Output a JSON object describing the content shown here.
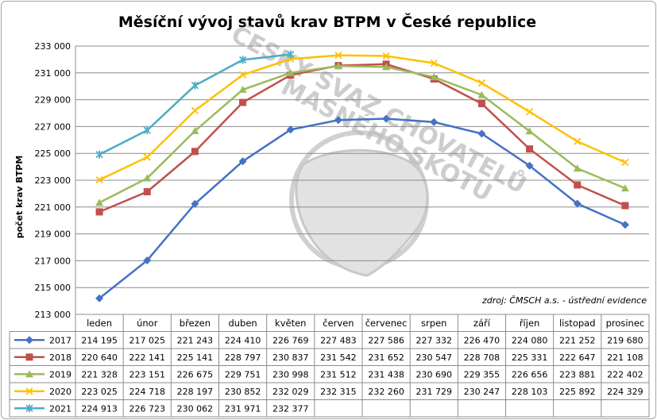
{
  "chart_data": {
    "type": "line",
    "title": "Měsíční vývoj stavů krav BTPM v České republice",
    "ylabel": "počet krav BTPM",
    "ylim": [
      213000,
      233000
    ],
    "yticks": [
      "213 000",
      "215 000",
      "217 000",
      "219 000",
      "221 000",
      "223 000",
      "225 000",
      "227 000",
      "229 000",
      "231 000",
      "233 000"
    ],
    "categories": [
      "leden",
      "únor",
      "březen",
      "duben",
      "květen",
      "červen",
      "červenec",
      "srpen",
      "září",
      "říjen",
      "listopad",
      "prosinec"
    ],
    "grid": true,
    "legend": "data-table",
    "source_note": "zdroj: ČMSCH a.s. - ústřední evidence",
    "watermark": [
      "ČESKÝ SVAZ CHOVATELŮ",
      "MASNÉHO SKOTU"
    ],
    "series": [
      {
        "name": "2017",
        "color": "#4472c4",
        "marker": "diamond",
        "values": [
          214195,
          217025,
          221243,
          224410,
          226769,
          227483,
          227586,
          227332,
          226470,
          224080,
          221252,
          219680
        ],
        "labels": [
          "214 195",
          "217 025",
          "221 243",
          "224 410",
          "226 769",
          "227 483",
          "227 586",
          "227 332",
          "226 470",
          "224 080",
          "221 252",
          "219 680"
        ]
      },
      {
        "name": "2018",
        "color": "#c0504d",
        "marker": "square",
        "values": [
          220640,
          222141,
          225141,
          228797,
          230837,
          231542,
          231652,
          230547,
          228708,
          225331,
          222647,
          221108
        ],
        "labels": [
          "220 640",
          "222 141",
          "225 141",
          "228 797",
          "230 837",
          "231 542",
          "231 652",
          "230 547",
          "228 708",
          "225 331",
          "222 647",
          "221 108"
        ]
      },
      {
        "name": "2019",
        "color": "#9bbb59",
        "marker": "triangle",
        "values": [
          221328,
          223151,
          226675,
          229751,
          230998,
          231512,
          231438,
          230690,
          229355,
          226656,
          223881,
          222402
        ],
        "labels": [
          "221 328",
          "223 151",
          "226 675",
          "229 751",
          "230 998",
          "231 512",
          "231 438",
          "230 690",
          "229 355",
          "226 656",
          "223 881",
          "222 402"
        ]
      },
      {
        "name": "2020",
        "color": "#ffc000",
        "marker": "x",
        "values": [
          223025,
          224718,
          228197,
          230852,
          232029,
          232315,
          232260,
          231729,
          230247,
          228103,
          225892,
          224329
        ],
        "labels": [
          "223 025",
          "224 718",
          "228 197",
          "230 852",
          "232 029",
          "232 315",
          "232 260",
          "231 729",
          "230 247",
          "228 103",
          "225 892",
          "224 329"
        ]
      },
      {
        "name": "2021",
        "color": "#4bacc6",
        "marker": "star",
        "values": [
          224913,
          226723,
          230062,
          231971,
          232377,
          null,
          null,
          null,
          null,
          null,
          null,
          null
        ],
        "labels": [
          "224 913",
          "226 723",
          "230 062",
          "231 971",
          "232 377",
          "",
          "",
          "",
          "",
          "",
          "",
          ""
        ]
      }
    ]
  }
}
